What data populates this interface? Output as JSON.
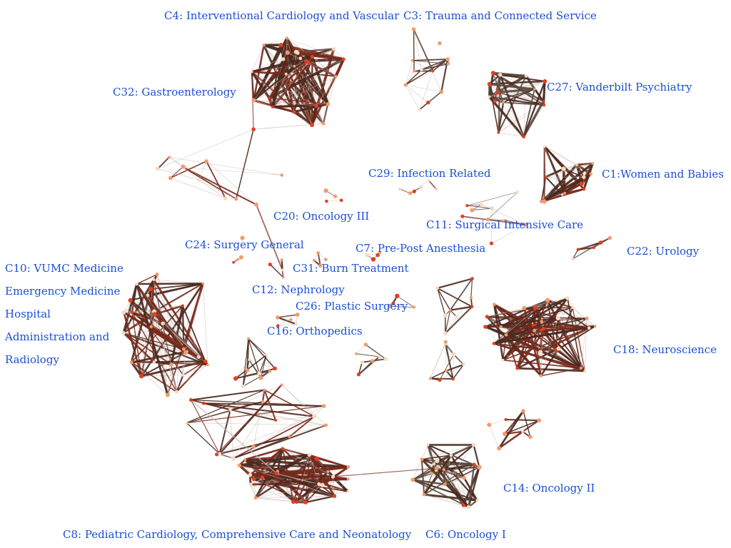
{
  "clusters": [
    {
      "id": "c4",
      "label": "C4: Interventional Cardiology and Vascular",
      "nodes": 26,
      "density": 0.55,
      "weight": 3.4,
      "tone": "red"
    },
    {
      "id": "c3",
      "label": "C3: Trauma and Connected Service",
      "nodes": 12,
      "density": 0.35,
      "weight": 1.8,
      "tone": "gray"
    },
    {
      "id": "c27",
      "label": "C27: Vanderbilt Psychiatry",
      "nodes": 14,
      "density": 0.75,
      "weight": 3.0,
      "tone": "gray"
    },
    {
      "id": "c32",
      "label": "C32: Gastroenterology",
      "nodes": 12,
      "density": 0.25,
      "weight": 1.8,
      "tone": "red"
    },
    {
      "id": "c1",
      "label": "C1:Women and Babies",
      "nodes": 13,
      "density": 0.8,
      "weight": 3.0,
      "tone": "red"
    },
    {
      "id": "c29",
      "label": "C29: Infection Related",
      "nodes": 6,
      "density": 0.5,
      "weight": 1.2,
      "tone": "red"
    },
    {
      "id": "c20",
      "label": "C20: Oncology III",
      "nodes": 4,
      "density": 0.6,
      "weight": 1.2,
      "tone": "gray"
    },
    {
      "id": "c11",
      "label": "C11: Surgical Intensive Care",
      "nodes": 10,
      "density": 0.3,
      "weight": 0.8,
      "tone": "gray"
    },
    {
      "id": "c22",
      "label": "C22: Urology",
      "nodes": 5,
      "density": 0.9,
      "weight": 2.2,
      "tone": "gray"
    },
    {
      "id": "c24",
      "label": "C24: Surgery General",
      "nodes": 4,
      "density": 0.6,
      "weight": 1.8,
      "tone": "red"
    },
    {
      "id": "c7",
      "label": "C7: Pre-Post Anesthesia",
      "nodes": 4,
      "density": 0.6,
      "weight": 1.2,
      "tone": "red"
    },
    {
      "id": "c10",
      "label": "C10: VUMC Medicine Emergency Medicine Hospital Administration and Radiology",
      "nodes": 28,
      "density": 0.45,
      "weight": 2.6,
      "tone": "red"
    },
    {
      "id": "c31",
      "label": "C31: Burn Treatment",
      "nodes": 4,
      "density": 0.8,
      "weight": 2.0,
      "tone": "gray"
    },
    {
      "id": "c12",
      "label": "C12: Nephrology",
      "nodes": 4,
      "density": 0.8,
      "weight": 2.0,
      "tone": "gray"
    },
    {
      "id": "c26",
      "label": "C26: Plastic Surgery",
      "nodes": 4,
      "density": 0.6,
      "weight": 1.5,
      "tone": "gray"
    },
    {
      "id": "c16",
      "label": "C16: Orthopedics",
      "nodes": 5,
      "density": 0.7,
      "weight": 1.8,
      "tone": "gray"
    },
    {
      "id": "c18",
      "label": "C18: Neuroscience",
      "nodes": 28,
      "density": 0.4,
      "weight": 2.4,
      "tone": "red"
    },
    {
      "id": "cm1",
      "label": "",
      "nodes": 10,
      "density": 0.5,
      "weight": 2.0,
      "tone": "gray"
    },
    {
      "id": "cm2",
      "label": "",
      "nodes": 7,
      "density": 0.5,
      "weight": 2.0,
      "tone": "gray"
    },
    {
      "id": "cm3",
      "label": "",
      "nodes": 16,
      "density": 0.3,
      "weight": 2.0,
      "tone": "red"
    },
    {
      "id": "cm4",
      "label": "",
      "nodes": 8,
      "density": 0.45,
      "weight": 2.0,
      "tone": "gray"
    },
    {
      "id": "cm5",
      "label": "",
      "nodes": 8,
      "density": 0.5,
      "weight": 2.0,
      "tone": "gray"
    },
    {
      "id": "c14",
      "label": "C14: Oncology II",
      "nodes": 8,
      "density": 0.5,
      "weight": 2.4,
      "tone": "red"
    },
    {
      "id": "c8",
      "label": "C8: Pediatric Cardiology, Comprehensive Care and Neonatology",
      "nodes": 24,
      "density": 0.5,
      "weight": 3.0,
      "tone": "red"
    },
    {
      "id": "c6",
      "label": "C6: Oncology I",
      "nodes": 18,
      "density": 0.45,
      "weight": 2.6,
      "tone": "gray"
    }
  ],
  "colors": {
    "edge_dark": "#4a2a20",
    "edge_red": "#7a2a1c",
    "edge_gray": "#5b4a3e",
    "edge_light": "#c9b8ae",
    "node_core": "#e04020",
    "node_mid": "#f39a6b",
    "node_pale": "#f7d9c2",
    "label": "#1a4fd6"
  }
}
